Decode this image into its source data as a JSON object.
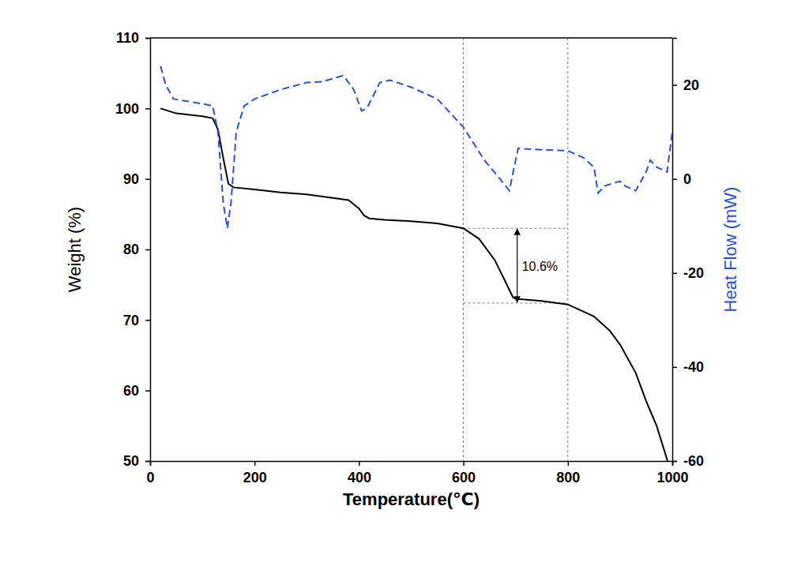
{
  "chart_data": {
    "type": "line",
    "x_label": "Temperature(℃)",
    "y_label": "Weight (%)",
    "y2_label": "Heat Flow (mW)",
    "xlim": [
      0,
      1000
    ],
    "xticks": [
      0,
      200,
      400,
      600,
      800,
      1000
    ],
    "ylim": [
      50,
      110
    ],
    "yticks": [
      50,
      60,
      70,
      80,
      90,
      100,
      110
    ],
    "y2lim": [
      -60,
      30
    ],
    "y2ticks": [
      -60,
      -40,
      -20,
      0,
      20
    ],
    "series": [
      {
        "color": "#000000",
        "line_style": "solid",
        "axis": "y",
        "x": [
          20,
          50,
          100,
          120,
          130,
          140,
          150,
          160,
          200,
          250,
          300,
          350,
          380,
          400,
          410,
          420,
          450,
          500,
          550,
          600,
          630,
          660,
          680,
          695,
          700,
          750,
          800,
          850,
          880,
          900,
          930,
          950,
          970,
          991
        ],
        "values": [
          100,
          99.3,
          98.9,
          98.6,
          97,
          93,
          89.3,
          88.8,
          88.5,
          88.1,
          87.8,
          87.3,
          87.0,
          85.8,
          84.8,
          84.4,
          84.2,
          84.0,
          83.7,
          83.0,
          81.5,
          78.5,
          75.5,
          73.2,
          73.0,
          72.7,
          72.2,
          70.5,
          68.5,
          66.5,
          62.5,
          58.5,
          55,
          50
        ]
      },
      {
        "color": "#2b50d8",
        "line_style": "dashed",
        "axis": "y2",
        "x": [
          20,
          30,
          45,
          100,
          120,
          130,
          140,
          148,
          155,
          165,
          180,
          200,
          250,
          300,
          330,
          370,
          390,
          405,
          415,
          440,
          460,
          500,
          550,
          600,
          640,
          670,
          688,
          700,
          705,
          750,
          800,
          830,
          850,
          858,
          870,
          900,
          910,
          930,
          950,
          958,
          970,
          990,
          1000
        ],
        "values": [
          24,
          20,
          17,
          16,
          15.5,
          10,
          -5,
          -10.5,
          -5,
          10,
          15.5,
          17,
          19,
          20.5,
          20.7,
          22,
          19,
          14.5,
          15,
          20.5,
          21,
          19.5,
          17,
          11,
          4,
          0,
          -2.5,
          4,
          6.5,
          6.2,
          6,
          4.5,
          2.5,
          -3,
          -1.5,
          -0.5,
          -1.5,
          -2.5,
          1.5,
          4,
          2.5,
          1.5,
          10
        ]
      }
    ],
    "annotations": [
      {
        "text": "10.6%",
        "x": 703,
        "y_from": 83.0,
        "y_to": 72.4,
        "x_span": [
          600,
          800
        ]
      }
    ]
  }
}
